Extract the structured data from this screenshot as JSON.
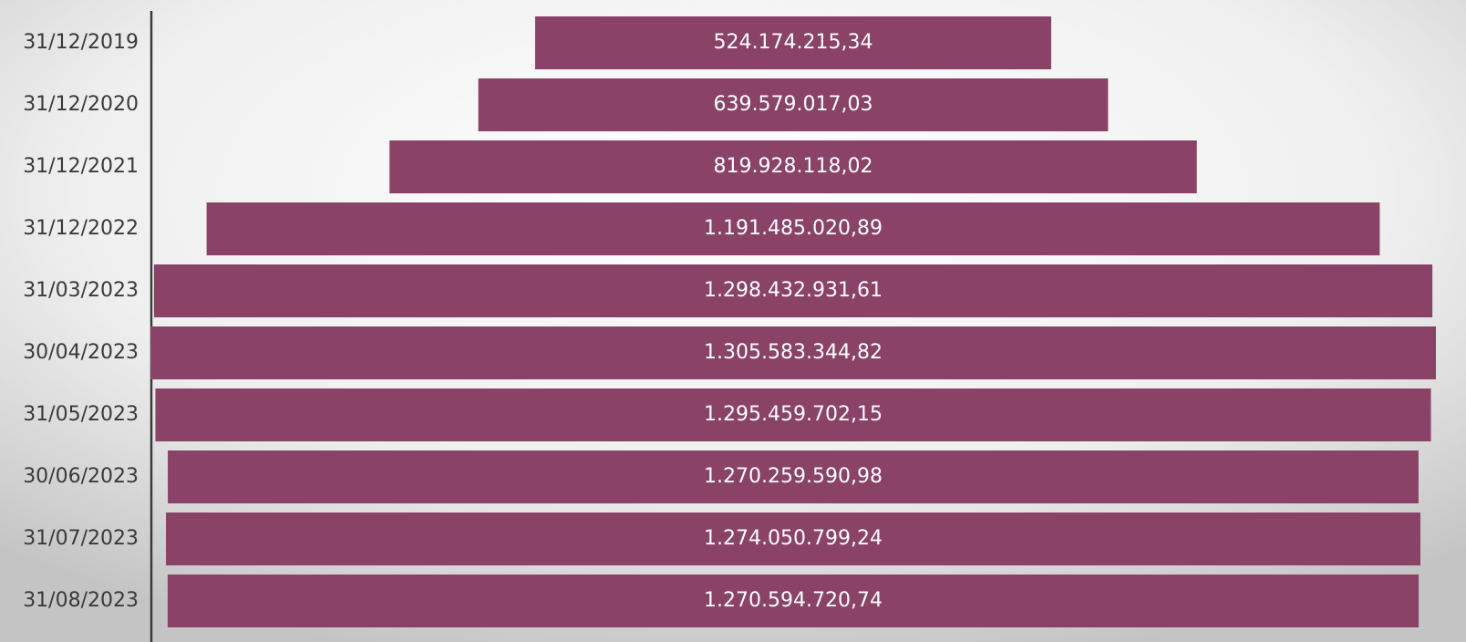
{
  "chart_data": {
    "type": "funnel",
    "categories": [
      "31/12/2019",
      "31/12/2020",
      "31/12/2021",
      "31/12/2022",
      "31/03/2023",
      "30/04/2023",
      "31/05/2023",
      "30/06/2023",
      "31/07/2023",
      "31/08/2023"
    ],
    "values": [
      524174215.34,
      639579017.03,
      819928118.02,
      1191485020.89,
      1298432931.61,
      1305583344.82,
      1295459702.15,
      1270259590.98,
      1274050799.24,
      1270594720.74
    ],
    "value_labels": [
      "524.174.215,34",
      "639.579.017,03",
      "819.928.118,02",
      "1.191.485.020,89",
      "1.298.432.931,61",
      "1.305.583.344,82",
      "1.295.459.702,15",
      "1.270.259.590,98",
      "1.274.050.799,24",
      "1.270.594.720,74"
    ],
    "color": "#8a4267"
  }
}
